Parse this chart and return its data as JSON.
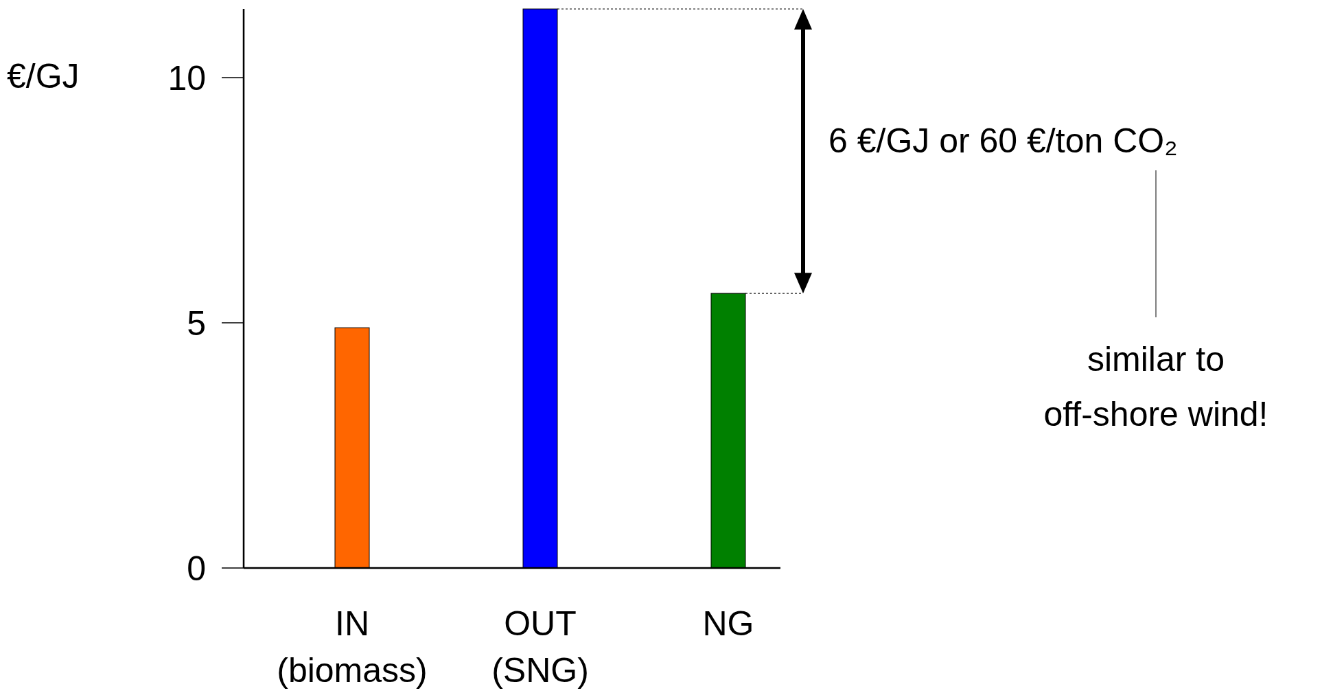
{
  "chart_data": {
    "type": "bar",
    "ylabel": "€/GJ",
    "categories": [
      "IN\n(biomass)",
      "OUT\n(SNG)",
      "NG"
    ],
    "values": [
      4.9,
      11.4,
      5.6
    ],
    "colors": [
      "#ff6600",
      "#0000ff",
      "#008000"
    ],
    "ylim": [
      0,
      11.4
    ],
    "yticks": [
      0,
      5,
      10
    ],
    "grid": false,
    "annotations": [
      "6 €/GJ or 60 €/ton CO₂",
      "similar to\noff-shore wind!"
    ]
  }
}
